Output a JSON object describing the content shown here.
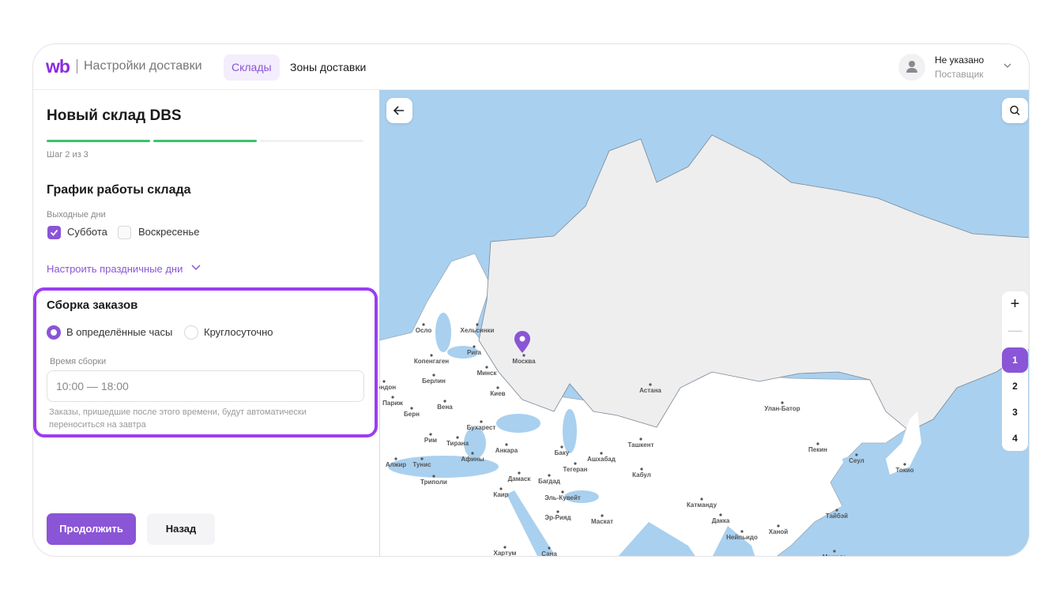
{
  "header": {
    "logo": "wb",
    "title": "Настройки доставки",
    "tabs": [
      {
        "label": "Склады",
        "active": true
      },
      {
        "label": "Зоны доставки",
        "active": false
      }
    ],
    "user": {
      "name": "Не указано",
      "role": "Поставщик",
      "icon": "user-icon"
    }
  },
  "form": {
    "title": "Новый склад DBS",
    "progress": {
      "current": 2,
      "total": 3,
      "label": "Шаг 2 из 3"
    },
    "schedule": {
      "title": "График работы склада",
      "weekends_label": "Выходные дни",
      "days": [
        {
          "label": "Суббота",
          "checked": true
        },
        {
          "label": "Воскресенье",
          "checked": false
        }
      ],
      "holidays_link": "Настроить праздничные дни"
    },
    "assembly": {
      "title": "Сборка заказов",
      "options": [
        {
          "label": "В определённые часы",
          "selected": true
        },
        {
          "label": "Круглосуточно",
          "selected": false
        }
      ],
      "time_label": "Время сборки",
      "time_value": "10:00 — 18:00",
      "hint": "Заказы, пришедшие после этого времени, будут автоматически переноситься на завтра"
    },
    "continue_label": "Продолжить",
    "back_label": "Назад"
  },
  "map": {
    "marker_city": "Москва",
    "zoom_levels": [
      "1",
      "2",
      "3",
      "4"
    ],
    "selected_level": "1",
    "cities": [
      "Осло",
      "Хельсинки",
      "Рига",
      "Копенгаген",
      "Минск",
      "Москва",
      "Берлин",
      "Киев",
      "Лондон",
      "Париж",
      "Берн",
      "Вена",
      "Бухарест",
      "Рим",
      "Тирана",
      "Анкара",
      "Афины",
      "Алжир",
      "Тунис",
      "Триполи",
      "Баку",
      "Ашхабад",
      "Тегеран",
      "Дамаск",
      "Багдад",
      "Кабул",
      "Каир",
      "Эль-Кувейт",
      "Эр-Рияд",
      "Маскат",
      "Хартум",
      "Сана",
      "Астана",
      "Ташкент",
      "Улан-Батор",
      "Пекин",
      "Сеул",
      "Токио",
      "Катманду",
      "Дакка",
      "Нейпьидо",
      "Ханой",
      "Тайбэй",
      "Манила"
    ]
  },
  "colors": {
    "accent": "#8a55d6",
    "highlight": "#9b3df2",
    "progress": "#3cc26b",
    "water": "#a9d0ef",
    "land": "#eeeeef"
  }
}
